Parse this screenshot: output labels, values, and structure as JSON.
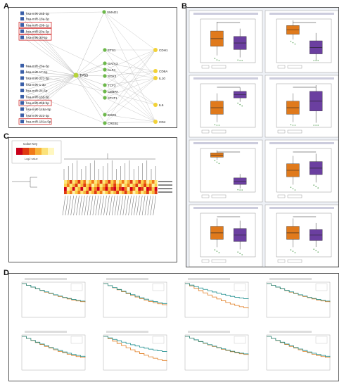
{
  "panels": {
    "a": {
      "label": "A"
    },
    "b": {
      "label": "B"
    },
    "c": {
      "label": "C"
    },
    "d": {
      "label": "D"
    }
  },
  "network": {
    "mirnas": [
      {
        "label": "hsa-miR-26b-3p",
        "highlight": false
      },
      {
        "label": "hsa-miR-18a-5p",
        "highlight": false
      },
      {
        "label": "hsa-miR-29b-1p",
        "highlight": true
      },
      {
        "label": "hsa-miR-20a-5p",
        "highlight": true
      },
      {
        "label": "hsa-miR-30-5p",
        "highlight": true
      },
      {
        "label": "hsa-miR-26a-5p",
        "highlight": false
      },
      {
        "label": "hsa-miR-17-5p",
        "highlight": false
      },
      {
        "label": "hsa-miR-221-3p",
        "highlight": false
      },
      {
        "label": "hsa-miR-1-3p",
        "highlight": false
      },
      {
        "label": "hsa-miR-24-5p",
        "highlight": false
      },
      {
        "label": "hsa-miR-155-5p",
        "highlight": false
      },
      {
        "label": "hsa-miR-26b-5p",
        "highlight": true
      },
      {
        "label": "hsa-miR-146a-5p",
        "highlight": false
      },
      {
        "label": "hsa-miR-223-3p",
        "highlight": false
      },
      {
        "label": "hsa-miR-181a-5p",
        "highlight": true
      }
    ],
    "hub": "TP53",
    "tfs": [
      "SMAD1",
      "ETS1",
      "GATA3",
      "KLF4",
      "SOX2",
      "TCF3",
      "CEBPA",
      "STAT1",
      "EGR1",
      "CREB1"
    ],
    "targets": [
      "CDH1",
      "CD8A",
      "IL10",
      "IL6",
      "CD4"
    ]
  },
  "heatmap": {
    "key_title": "Color Key",
    "key_scale": "Log2 value"
  },
  "colors": {
    "box_orange": "#e07a1c",
    "box_purple": "#6b3fa0",
    "mirna_node": "#3a5fa8",
    "hub_node": "#b5d33a",
    "tf_node": "#6cb84a",
    "target_node": "#f2d236",
    "highlight_border": "#d23030",
    "km_high": "#e07a1c",
    "km_low": "#1e8f8f"
  }
}
